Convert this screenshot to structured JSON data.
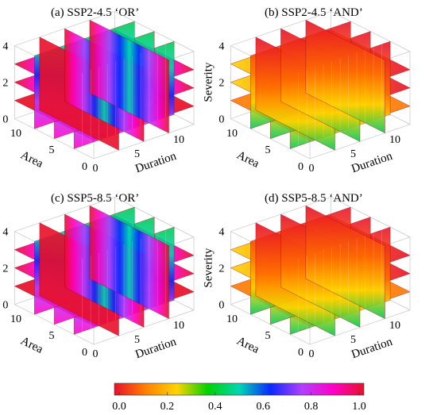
{
  "figure": {
    "panels": [
      {
        "title": "(a) SSP2-4.5 ‘OR’",
        "kind": "OR"
      },
      {
        "title": "(b) SSP2-4.5 ‘AND’",
        "kind": "AND"
      },
      {
        "title": "(c) SSP5-8.5 ‘OR’",
        "kind": "OR"
      },
      {
        "title": "(d) SSP5-8.5 ‘AND’",
        "kind": "AND"
      }
    ],
    "axes": {
      "z_label": "Severity",
      "y_label": "Area",
      "x_label": "Duration",
      "z_ticks": [
        "0",
        "2",
        "4"
      ],
      "y_ticks": [
        "0",
        "5",
        "10"
      ],
      "x_ticks": [
        "0",
        "5",
        "10"
      ]
    },
    "colorbar": {
      "ticks": [
        "0.0",
        "0.2",
        "0.4",
        "0.6",
        "0.8",
        "1.0"
      ],
      "colors": [
        "#e8102a",
        "#ff8000",
        "#ffd400",
        "#00d200",
        "#00d6b4",
        "#0a28ff",
        "#b040ff",
        "#ff00c8",
        "#e8102a"
      ]
    }
  },
  "chart_data": {
    "type": "heatmap",
    "subtype": "3d volumetric slices",
    "title": "",
    "dimensions": [
      "Duration",
      "Area",
      "Severity"
    ],
    "xlim": [
      0,
      12
    ],
    "ylim": [
      0,
      12
    ],
    "zlim": [
      0,
      4
    ],
    "color_scale": {
      "min": 0.0,
      "max": 1.0
    },
    "panels": [
      {
        "title": "(a) SSP2-4.5 ‘OR’",
        "slice_planes": {
          "x": [
            3,
            6,
            9
          ],
          "y": [
            3,
            6,
            9
          ],
          "z": [
            1,
            2,
            3
          ]
        }
      },
      {
        "title": "(b) SSP2-4.5 ‘AND’",
        "slice_planes": {
          "x": [
            3,
            6,
            9
          ],
          "y": [
            3,
            6,
            9
          ],
          "z": [
            1,
            2,
            3
          ]
        }
      },
      {
        "title": "(c) SSP5-8.5 ‘OR’",
        "slice_planes": {
          "x": [
            3,
            6,
            9
          ],
          "y": [
            3,
            6,
            9
          ],
          "z": [
            1,
            2,
            3
          ]
        }
      },
      {
        "title": "(d) SSP5-8.5 ‘AND’",
        "slice_planes": {
          "x": [
            3,
            6,
            9
          ],
          "y": [
            3,
            6,
            9
          ],
          "z": [
            1,
            2,
            3
          ]
        }
      }
    ]
  }
}
